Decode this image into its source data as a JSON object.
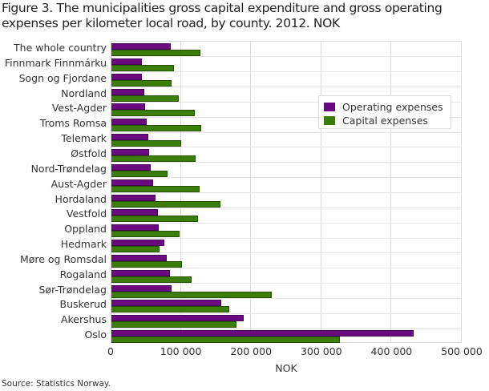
{
  "title": "Figure 3. The municipalities gross capital expenditure and gross operating expenses per kilometer local road, by county. 2012. NOK",
  "source": "Source: Statistics Norway.",
  "colors": {
    "operating": "#6a0a80",
    "capital": "#3c7d0a",
    "grid": "#dddddd"
  },
  "legend": {
    "items": [
      {
        "label": "Operating expenses",
        "color": "#6a0a80"
      },
      {
        "label": "Capital expenses",
        "color": "#3c7d0a"
      }
    ]
  },
  "axis": {
    "xlabel": "NOK",
    "ticks": [
      "0",
      "100 000",
      "200 000",
      "300 000",
      "400 000",
      "500 000"
    ]
  },
  "chart_data": {
    "type": "bar",
    "orientation": "horizontal",
    "title": "Figure 3. The municipalities gross capital expenditure and gross operating expenses per kilometer local road, by county. 2012. NOK",
    "xlabel": "NOK",
    "ylabel": "",
    "xlim": [
      0,
      500000
    ],
    "xticks": [
      0,
      100000,
      200000,
      300000,
      400000,
      500000
    ],
    "grid": true,
    "legend_position": "upper right inside plot",
    "categories": [
      "The whole country",
      "Finnmark Finnmárku",
      "Sogn og Fjordane",
      "Nordland",
      "Vest-Agder",
      "Troms Romsa",
      "Telemark",
      "Østfold",
      "Nord-Trøndelag",
      "Aust-Agder",
      "Hordaland",
      "Vestfold",
      "Oppland",
      "Hedmark",
      "Møre og Romsdal",
      "Rogaland",
      "Sør-Trøndelag",
      "Buskerud",
      "Akershus",
      "Oslo"
    ],
    "series": [
      {
        "name": "Operating expenses",
        "color": "#6a0a80",
        "values": [
          86000,
          44000,
          44000,
          48000,
          49000,
          51000,
          54000,
          55000,
          57000,
          61000,
          64000,
          67000,
          69000,
          76000,
          80000,
          84000,
          87000,
          158000,
          190000,
          431000
        ]
      },
      {
        "name": "Capital expenses",
        "color": "#3c7d0a",
        "values": [
          128000,
          90000,
          87000,
          97000,
          120000,
          129000,
          101000,
          121000,
          81000,
          127000,
          156000,
          124000,
          98000,
          70000,
          102000,
          115000,
          230000,
          169000,
          179000,
          326000
        ]
      }
    ],
    "source": "Source: Statistics Norway."
  }
}
